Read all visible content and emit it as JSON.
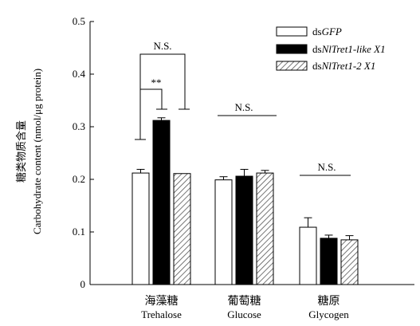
{
  "chart_data": {
    "type": "bar",
    "ylabel_cn": "糖类物质含量",
    "ylabel_en": "Carbohydrate content (nmol/μg protein)",
    "ylim": [
      0,
      0.5
    ],
    "yticks": [
      "0",
      "0.1",
      "0.2",
      "0.3",
      "0.4",
      "0.5"
    ],
    "categories": [
      {
        "cn": "海藻糖",
        "en": "Trehalose"
      },
      {
        "cn": "葡萄糖",
        "en": "Glucose"
      },
      {
        "cn": "糖原",
        "en": "Glycogen"
      }
    ],
    "series": [
      {
        "prefix": "ds",
        "name": "GFP",
        "fill": "white",
        "values": [
          0.212,
          0.199,
          0.109
        ],
        "errors": [
          0.007,
          0.006,
          0.018
        ]
      },
      {
        "prefix": "ds",
        "name": "NlTret1-like X1",
        "fill": "black",
        "values": [
          0.312,
          0.206,
          0.088
        ],
        "errors": [
          0.005,
          0.013,
          0.006
        ]
      },
      {
        "prefix": "ds",
        "name": "NlTret1-2 X1",
        "fill": "hatch",
        "values": [
          0.211,
          0.212,
          0.085
        ],
        "errors": [
          0.0,
          0.005,
          0.008
        ]
      }
    ],
    "annotations": {
      "trehalose_outer": "N.S.",
      "trehalose_inner": "**",
      "glucose": "N.S.",
      "glycogen": "N.S."
    },
    "legend_position": "top-right",
    "colors": {
      "bar_stroke": "#000000",
      "black_fill": "#000000",
      "hatch": "#555555"
    }
  }
}
